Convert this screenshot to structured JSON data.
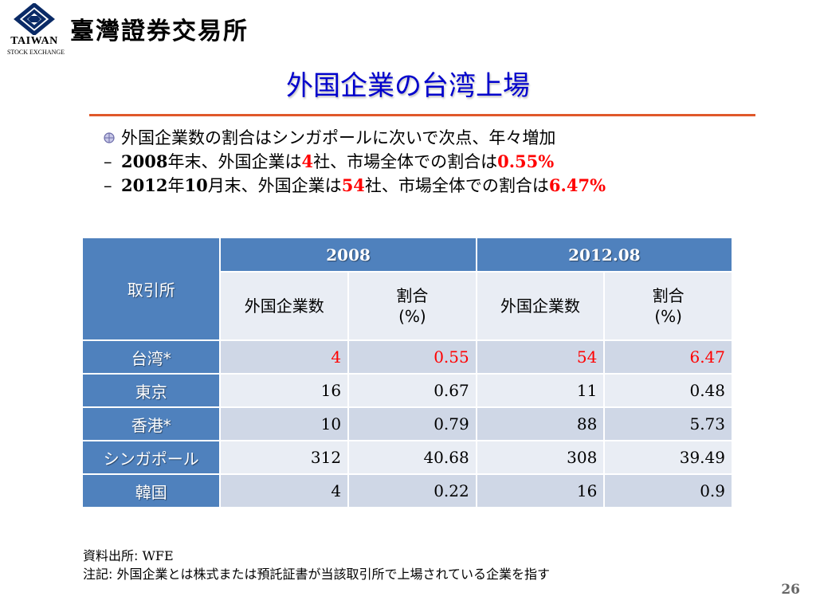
{
  "header": {
    "logo_line1": "TAIWAN",
    "logo_line2": "STOCK EXCHANGE",
    "brand_name": "臺灣證券交易所"
  },
  "title": "外国企業の台湾上場",
  "bullets": {
    "main": "外国企業数の割合はシンガポールに次いで次点、年々増加",
    "sub1": {
      "year": "2008",
      "t1": "年末、外国企業は",
      "count": "4",
      "t2": "社、市場全体での割合は",
      "pct": "0.55%"
    },
    "sub2": {
      "year": "2012",
      "t1": "年",
      "month": "10",
      "t2": "月末、外国企業は",
      "count": "54",
      "t3": "社、市場全体での割合は",
      "pct": "6.47%"
    }
  },
  "table": {
    "exchange_header": "取引所",
    "period1": "2008",
    "period2": "2012.08",
    "col_count": "外国企業数",
    "col_ratio_line1": "割合",
    "col_ratio_line2": "(%)",
    "rows": [
      {
        "name": "台湾*",
        "c2008": "4",
        "r2008": "0.55",
        "c2012": "54",
        "r2012": "6.47"
      },
      {
        "name": "東京",
        "c2008": "16",
        "r2008": "0.67",
        "c2012": "11",
        "r2012": "0.48"
      },
      {
        "name": "香港*",
        "c2008": "10",
        "r2008": "0.79",
        "c2012": "88",
        "r2012": "5.73"
      },
      {
        "name": "シンガポール",
        "c2008": "312",
        "r2008": "40.68",
        "c2012": "308",
        "r2012": "39.49"
      },
      {
        "name": "韓国",
        "c2008": "4",
        "r2008": "0.22",
        "c2012": "16",
        "r2012": "0.9"
      }
    ]
  },
  "footer": {
    "source_label": "資料出所: ",
    "source_value": "WFE",
    "note_label": "注記: ",
    "note_text": "外国企業とは株式または預託証書が当該取引所で上場されている企業を指す"
  },
  "page_number": "26",
  "colors": {
    "accent_title": "#0000cc",
    "rule": "#e0582a",
    "table_header": "#4f81bd",
    "highlight": "#ff0000"
  }
}
